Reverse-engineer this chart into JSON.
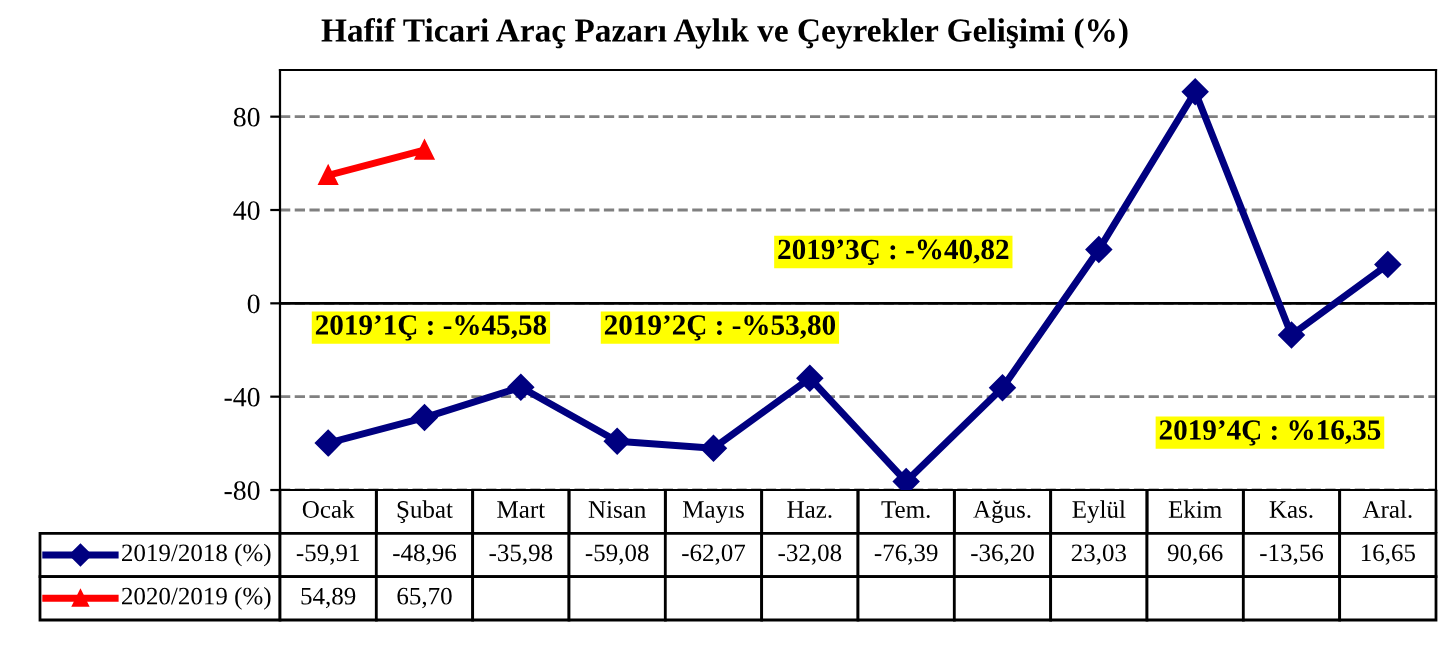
{
  "chart_data": {
    "type": "line",
    "title": "Hafif Ticari Araç Pazarı Aylık ve Çeyrekler Gelişimi (%)",
    "categories": [
      "Ocak",
      "Şubat",
      "Mart",
      "Nisan",
      "Mayıs",
      "Haz.",
      "Tem.",
      "Ağus.",
      "Eylül",
      "Ekim",
      "Kas.",
      "Aral."
    ],
    "series": [
      {
        "name": "2019/2018 (%)",
        "color": "#000080",
        "marker": "diamond",
        "values": [
          -59.91,
          -48.96,
          -35.98,
          -59.08,
          -62.07,
          -32.08,
          -76.39,
          -36.2,
          23.03,
          90.66,
          -13.56,
          16.65
        ],
        "value_labels": [
          "-59,91",
          "-48,96",
          "-35,98",
          "-59,08",
          "-62,07",
          "-32,08",
          "-76,39",
          "-36,20",
          "23,03",
          "90,66",
          "-13,56",
          "16,65"
        ]
      },
      {
        "name": "2020/2019 (%)",
        "color": "#ff0000",
        "marker": "triangle",
        "values": [
          54.89,
          65.7,
          null,
          null,
          null,
          null,
          null,
          null,
          null,
          null,
          null,
          null
        ],
        "value_labels": [
          "54,89",
          "65,70",
          null,
          null,
          null,
          null,
          null,
          null,
          null,
          null,
          null,
          null
        ]
      }
    ],
    "legend": "bottom left",
    "ylim": [
      -80,
      100
    ],
    "yticks": [
      -80,
      -40,
      0,
      40,
      80
    ],
    "grid": "y",
    "line_style": "solid",
    "ref_lines": [
      {
        "axis": "y",
        "value": 0,
        "color": "#000000",
        "line_style": "solid"
      }
    ],
    "annotations": [
      "2019’1Ç : -%45,58",
      "2019’2Ç : -%53,80",
      "2019’3Ç : -%40,82",
      "2019’4Ç : %16,35"
    ]
  }
}
